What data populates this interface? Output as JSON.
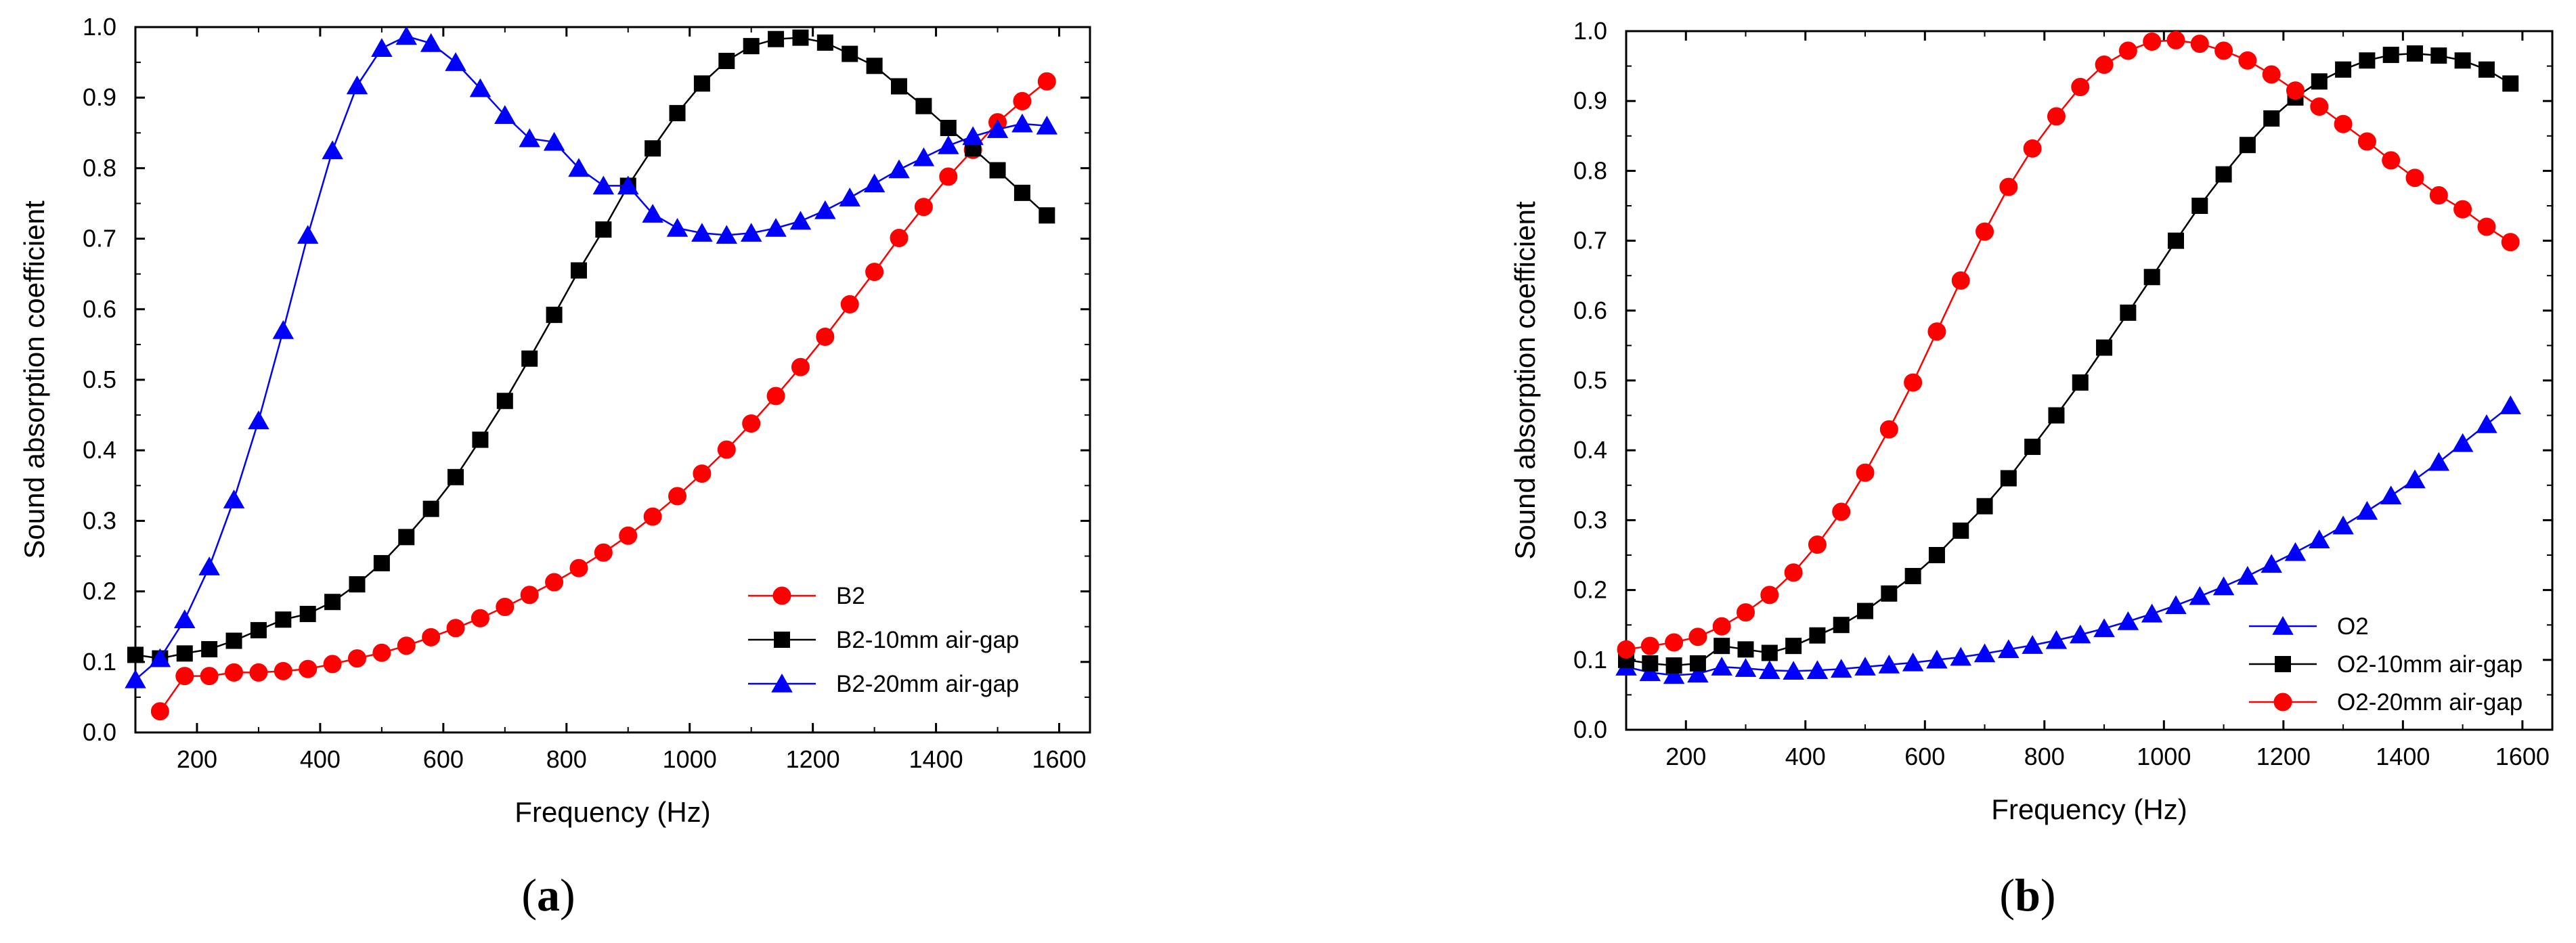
{
  "chart_data": [
    {
      "type": "line",
      "panel": "a",
      "caption": "(a)",
      "caption_open": "(",
      "caption_letter": "a",
      "caption_close": ")",
      "xlabel": "Frequency (Hz)",
      "ylabel": "Sound absorption coefficient",
      "xlim": [
        100,
        1650
      ],
      "ylim": [
        0,
        1.0
      ],
      "xticks": [
        200,
        400,
        600,
        800,
        1000,
        1200,
        1400,
        1600
      ],
      "yticks": [
        0.0,
        0.1,
        0.2,
        0.3,
        0.4,
        0.5,
        0.6,
        0.7,
        0.8,
        0.9,
        1.0
      ],
      "ytick_labels": [
        "0.0",
        "0.1",
        "0.2",
        "0.3",
        "0.4",
        "0.5",
        "0.6",
        "0.7",
        "0.8",
        "0.9",
        "1.0"
      ],
      "legend_position": "lower-right",
      "series": [
        {
          "name": "B2",
          "color": "#ff0000",
          "marker": "circle",
          "x": [
            140,
            180,
            220,
            260,
            300,
            340,
            380,
            420,
            460,
            500,
            540,
            580,
            620,
            660,
            700,
            740,
            780,
            820,
            860,
            900,
            940,
            980,
            1020,
            1060,
            1100,
            1140,
            1180,
            1220,
            1260,
            1300,
            1340,
            1380,
            1420,
            1460,
            1500,
            1540,
            1580
          ],
          "y": [
            0.03,
            0.08,
            0.08,
            0.085,
            0.085,
            0.087,
            0.09,
            0.097,
            0.105,
            0.113,
            0.123,
            0.135,
            0.148,
            0.162,
            0.178,
            0.195,
            0.213,
            0.233,
            0.255,
            0.279,
            0.306,
            0.335,
            0.367,
            0.401,
            0.438,
            0.477,
            0.518,
            0.561,
            0.607,
            0.653,
            0.701,
            0.745,
            0.788,
            0.826,
            0.865,
            0.895,
            0.923
          ]
        },
        {
          "name": "B2-10mm air-gap",
          "color": "#000000",
          "marker": "square",
          "x": [
            100,
            140,
            180,
            220,
            260,
            300,
            340,
            380,
            420,
            460,
            500,
            540,
            580,
            620,
            660,
            700,
            740,
            780,
            820,
            860,
            900,
            940,
            980,
            1020,
            1060,
            1100,
            1140,
            1180,
            1220,
            1260,
            1300,
            1340,
            1380,
            1420,
            1460,
            1500,
            1540,
            1580
          ],
          "y": [
            0.11,
            0.105,
            0.112,
            0.118,
            0.13,
            0.145,
            0.16,
            0.168,
            0.185,
            0.21,
            0.24,
            0.277,
            0.317,
            0.362,
            0.415,
            0.47,
            0.53,
            0.592,
            0.655,
            0.713,
            0.775,
            0.828,
            0.878,
            0.92,
            0.952,
            0.973,
            0.983,
            0.985,
            0.978,
            0.962,
            0.945,
            0.916,
            0.888,
            0.857,
            0.828,
            0.797,
            0.765,
            0.733
          ]
        },
        {
          "name": "B2-20mm air-gap",
          "color": "#0000ff",
          "marker": "triangle",
          "x": [
            100,
            140,
            180,
            220,
            260,
            300,
            340,
            380,
            420,
            460,
            500,
            540,
            580,
            620,
            660,
            700,
            740,
            780,
            820,
            860,
            900,
            940,
            980,
            1020,
            1060,
            1100,
            1140,
            1180,
            1220,
            1260,
            1300,
            1340,
            1380,
            1420,
            1460,
            1500,
            1540,
            1580
          ],
          "y": [
            0.075,
            0.105,
            0.16,
            0.235,
            0.33,
            0.442,
            0.57,
            0.705,
            0.825,
            0.917,
            0.97,
            0.987,
            0.977,
            0.95,
            0.913,
            0.875,
            0.842,
            0.837,
            0.8,
            0.775,
            0.775,
            0.735,
            0.715,
            0.708,
            0.705,
            0.708,
            0.715,
            0.725,
            0.74,
            0.758,
            0.778,
            0.798,
            0.815,
            0.832,
            0.845,
            0.855,
            0.863,
            0.86
          ]
        }
      ]
    },
    {
      "type": "line",
      "panel": "b",
      "caption": "(b)",
      "caption_open": "(",
      "caption_letter": "b",
      "caption_close": ")",
      "xlabel": "Frequency (Hz)",
      "ylabel": "Sound absorption coefficient",
      "xlim": [
        100,
        1650
      ],
      "ylim": [
        0,
        1.0
      ],
      "xticks": [
        200,
        400,
        600,
        800,
        1000,
        1200,
        1400,
        1600
      ],
      "yticks": [
        0.0,
        0.1,
        0.2,
        0.3,
        0.4,
        0.5,
        0.6,
        0.7,
        0.8,
        0.9,
        1.0
      ],
      "ytick_labels": [
        "0.0",
        "0.1",
        "0.2",
        "0.3",
        "0.4",
        "0.5",
        "0.6",
        "0.7",
        "0.8",
        "0.9",
        "1.0"
      ],
      "legend_position": "lower-right",
      "series": [
        {
          "name": "O2",
          "color": "#0000ff",
          "marker": "triangle",
          "x": [
            100,
            140,
            180,
            220,
            260,
            300,
            340,
            380,
            420,
            460,
            500,
            540,
            580,
            620,
            660,
            700,
            740,
            780,
            820,
            860,
            900,
            940,
            980,
            1020,
            1060,
            1100,
            1140,
            1180,
            1220,
            1260,
            1300,
            1340,
            1380,
            1420,
            1460,
            1500,
            1540,
            1580
          ],
          "y": [
            0.09,
            0.082,
            0.078,
            0.08,
            0.09,
            0.088,
            0.085,
            0.084,
            0.085,
            0.087,
            0.09,
            0.093,
            0.096,
            0.1,
            0.104,
            0.109,
            0.115,
            0.121,
            0.128,
            0.136,
            0.145,
            0.155,
            0.166,
            0.178,
            0.191,
            0.205,
            0.22,
            0.237,
            0.254,
            0.272,
            0.292,
            0.313,
            0.335,
            0.358,
            0.383,
            0.41,
            0.437,
            0.464
          ]
        },
        {
          "name": "O2-10mm air-gap",
          "color": "#000000",
          "marker": "square",
          "x": [
            100,
            140,
            180,
            220,
            260,
            300,
            340,
            380,
            420,
            460,
            500,
            540,
            580,
            620,
            660,
            700,
            740,
            780,
            820,
            860,
            900,
            940,
            980,
            1020,
            1060,
            1100,
            1140,
            1180,
            1220,
            1260,
            1300,
            1340,
            1380,
            1420,
            1460,
            1500,
            1540,
            1580
          ],
          "y": [
            0.1,
            0.095,
            0.092,
            0.095,
            0.12,
            0.115,
            0.11,
            0.12,
            0.135,
            0.15,
            0.17,
            0.195,
            0.22,
            0.25,
            0.285,
            0.32,
            0.36,
            0.405,
            0.45,
            0.497,
            0.547,
            0.597,
            0.648,
            0.7,
            0.75,
            0.795,
            0.837,
            0.875,
            0.905,
            0.928,
            0.945,
            0.958,
            0.966,
            0.968,
            0.965,
            0.958,
            0.945,
            0.925
          ]
        },
        {
          "name": "O2-20mm air-gap",
          "color": "#ff0000",
          "marker": "circle",
          "x": [
            100,
            140,
            180,
            220,
            260,
            300,
            340,
            380,
            420,
            460,
            500,
            540,
            580,
            620,
            660,
            700,
            740,
            780,
            820,
            860,
            900,
            940,
            980,
            1020,
            1060,
            1100,
            1140,
            1180,
            1220,
            1260,
            1300,
            1340,
            1380,
            1420,
            1460,
            1500,
            1540,
            1580
          ],
          "y": [
            0.115,
            0.12,
            0.125,
            0.133,
            0.148,
            0.168,
            0.193,
            0.225,
            0.265,
            0.312,
            0.368,
            0.43,
            0.497,
            0.57,
            0.643,
            0.713,
            0.777,
            0.832,
            0.878,
            0.92,
            0.952,
            0.972,
            0.985,
            0.987,
            0.982,
            0.972,
            0.958,
            0.938,
            0.915,
            0.892,
            0.867,
            0.842,
            0.815,
            0.79,
            0.765,
            0.745,
            0.72,
            0.698
          ]
        }
      ]
    }
  ]
}
